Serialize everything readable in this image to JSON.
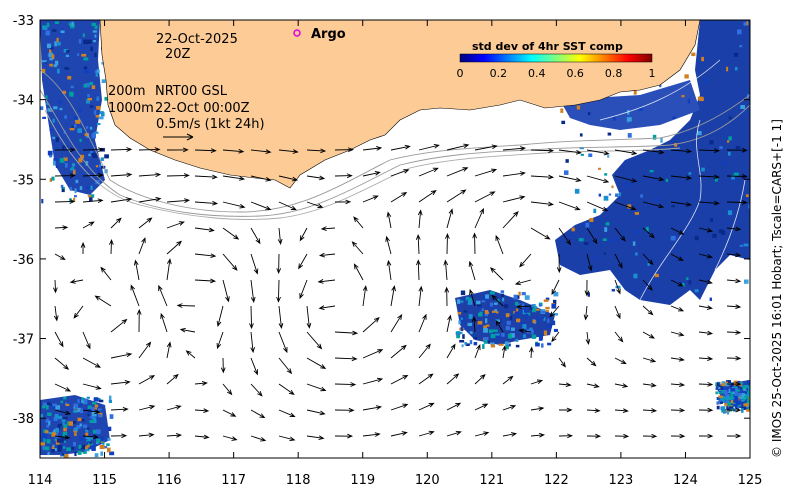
{
  "map": {
    "x_ticks": [
      "114",
      "115",
      "116",
      "117",
      "118",
      "119",
      "120",
      "121",
      "122",
      "123",
      "124",
      "125"
    ],
    "y_ticks": [
      "-33",
      "-34",
      "-35",
      "-36",
      "-37",
      "-38"
    ],
    "lon_range": [
      114,
      125
    ],
    "lat_range": [
      -38.5,
      -33
    ],
    "land_color": "#fccb96",
    "ocean_color": "#ffffff"
  },
  "annotations": {
    "date": "22-Oct-2025",
    "hour": "20Z",
    "depth1": "200m",
    "product": "NRT00 GSL",
    "depth2": "1000m",
    "analysis_time": "22-Oct 00:00Z",
    "scale_text": "0.5m/s (1kt 24h)",
    "argo_label": "Argo"
  },
  "colorbar": {
    "title": "std dev of 4hr SST comp",
    "ticks": [
      "0",
      "0.2",
      "0.4",
      "0.6",
      "0.8",
      "1"
    ],
    "colors": [
      "#00007f",
      "#0000ff",
      "#007fff",
      "#00ffff",
      "#7fff7f",
      "#ffff00",
      "#ff7f00",
      "#ff0000",
      "#7f0000"
    ]
  },
  "credit": "© IMOS 25-Oct-2025 16:01 Hobart; Tscale=CARS+[-1 1]"
}
